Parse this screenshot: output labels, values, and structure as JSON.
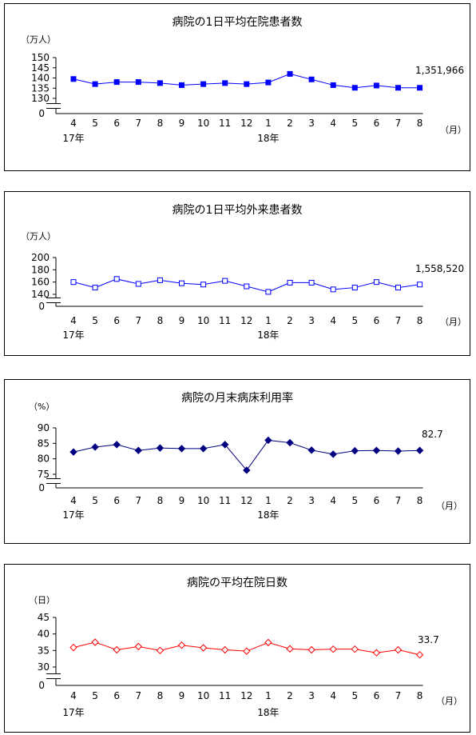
{
  "chart_data": [
    {
      "type": "line",
      "title": "病院の1日平均在院患者数",
      "ylabel": "（万人）",
      "xunit": "（月）",
      "categories": [
        "4",
        "5",
        "6",
        "7",
        "8",
        "9",
        "10",
        "11",
        "12",
        "1",
        "2",
        "3",
        "4",
        "5",
        "6",
        "7",
        "8"
      ],
      "year_labels": [
        {
          "index": 0,
          "label": "17年"
        },
        {
          "index": 9,
          "label": "18年"
        }
      ],
      "yticks": [
        "150",
        "145",
        "140",
        "135",
        "130",
        "0"
      ],
      "ylim": [
        130,
        150
      ],
      "axis_break": true,
      "series": [
        {
          "values": [
            139.5,
            137,
            138,
            138,
            137.5,
            136.5,
            137,
            137.5,
            137,
            137.8,
            142,
            139.3,
            136.5,
            135.2,
            136.3,
            135.2,
            135.2
          ]
        }
      ],
      "last_value_label": "1,351,966",
      "color": "#0000ff",
      "marker": "square-filled"
    },
    {
      "type": "line",
      "title": "病院の1日平均外来患者数",
      "ylabel": "（万人）",
      "xunit": "（月）",
      "categories": [
        "4",
        "5",
        "6",
        "7",
        "8",
        "9",
        "10",
        "11",
        "12",
        "1",
        "2",
        "3",
        "4",
        "5",
        "6",
        "7",
        "8"
      ],
      "year_labels": [
        {
          "index": 0,
          "label": "17年"
        },
        {
          "index": 9,
          "label": "18年"
        }
      ],
      "yticks": [
        "200",
        "180",
        "160",
        "140",
        "0"
      ],
      "ylim": [
        140,
        200
      ],
      "axis_break": true,
      "series": [
        {
          "values": [
            160,
            151,
            165,
            157,
            163,
            158,
            156,
            162,
            153,
            144,
            159,
            159,
            148,
            151,
            160,
            151,
            156
          ]
        }
      ],
      "last_value_label": "1,558,520",
      "color": "#0000ff",
      "marker": "square-open"
    },
    {
      "type": "line",
      "title": "病院の月末病床利用率",
      "ylabel": "（%）",
      "xunit": "（月）",
      "categories": [
        "4",
        "5",
        "6",
        "7",
        "8",
        "9",
        "10",
        "11",
        "12",
        "1",
        "2",
        "3",
        "4",
        "5",
        "6",
        "7",
        "8"
      ],
      "year_labels": [
        {
          "index": 0,
          "label": "17年"
        },
        {
          "index": 9,
          "label": "18年"
        }
      ],
      "yticks": [
        "90",
        "85",
        "80",
        "75",
        "0"
      ],
      "ylim": [
        75,
        90
      ],
      "axis_break": true,
      "series": [
        {
          "values": [
            82.2,
            83.8,
            84.6,
            82.7,
            83.5,
            83.3,
            83.3,
            84.6,
            76.3,
            86.0,
            85.2,
            82.8,
            81.5,
            82.6,
            82.7,
            82.5,
            82.7
          ]
        }
      ],
      "last_value_label": "82.7",
      "color": "#000080",
      "marker": "diamond-filled"
    },
    {
      "type": "line",
      "title": "病院の平均在院日数",
      "ylabel": "（日）",
      "xunit": "（月）",
      "categories": [
        "4",
        "5",
        "6",
        "7",
        "8",
        "9",
        "10",
        "11",
        "12",
        "1",
        "2",
        "3",
        "4",
        "5",
        "6",
        "7",
        "8"
      ],
      "year_labels": [
        {
          "index": 0,
          "label": "17年"
        },
        {
          "index": 9,
          "label": "18年"
        }
      ],
      "yticks": [
        "45",
        "40",
        "35",
        "30",
        "0"
      ],
      "ylim": [
        30,
        45
      ],
      "axis_break": true,
      "series": [
        {
          "values": [
            35.9,
            37.5,
            35.2,
            36.2,
            35.0,
            36.6,
            35.8,
            35.2,
            34.8,
            37.4,
            35.5,
            35.2,
            35.4,
            35.4,
            34.3,
            35.2,
            33.7
          ]
        }
      ],
      "last_value_label": "33.7",
      "color": "#ff0000",
      "marker": "diamond-open"
    }
  ]
}
